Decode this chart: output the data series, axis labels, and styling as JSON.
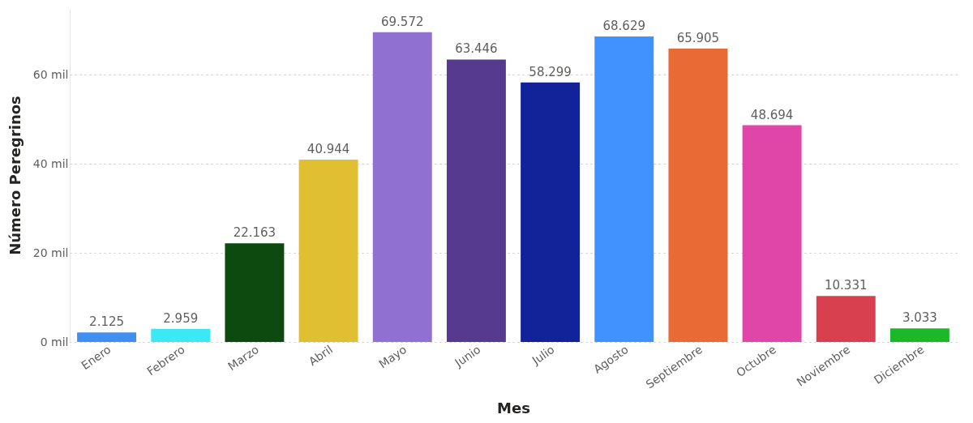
{
  "chart_data": {
    "type": "bar",
    "xlabel": "Mes",
    "ylabel": "Número Peregrinos",
    "categories": [
      "Enero",
      "Febrero",
      "Marzo",
      "Abril",
      "Mayo",
      "Junio",
      "Julio",
      "Agosto",
      "Septiembre",
      "Octubre",
      "Noviembre",
      "Diciembre"
    ],
    "values": [
      2.125,
      2.959,
      22.163,
      40.944,
      69.572,
      63.446,
      58.299,
      68.629,
      65.905,
      48.694,
      10.331,
      3.033
    ],
    "value_labels": [
      "2.125",
      "2.959",
      "22.163",
      "40.944",
      "69.572",
      "63.446",
      "58.299",
      "68.629",
      "65.905",
      "48.694",
      "10.331",
      "3.033"
    ],
    "colors": [
      "#3f8ef0",
      "#3de8f5",
      "#0d4a10",
      "#e0c030",
      "#9070d0",
      "#553a8f",
      "#12239a",
      "#3f92ff",
      "#e86a35",
      "#e045a8",
      "#d84050",
      "#1db82a"
    ],
    "yticks": [
      {
        "value": 0,
        "label": "0 mil"
      },
      {
        "value": 20,
        "label": "20 mil"
      },
      {
        "value": 40,
        "label": "40 mil"
      },
      {
        "value": 60,
        "label": "60 mil"
      }
    ],
    "ylim": [
      0,
      75
    ],
    "grid": "y"
  }
}
